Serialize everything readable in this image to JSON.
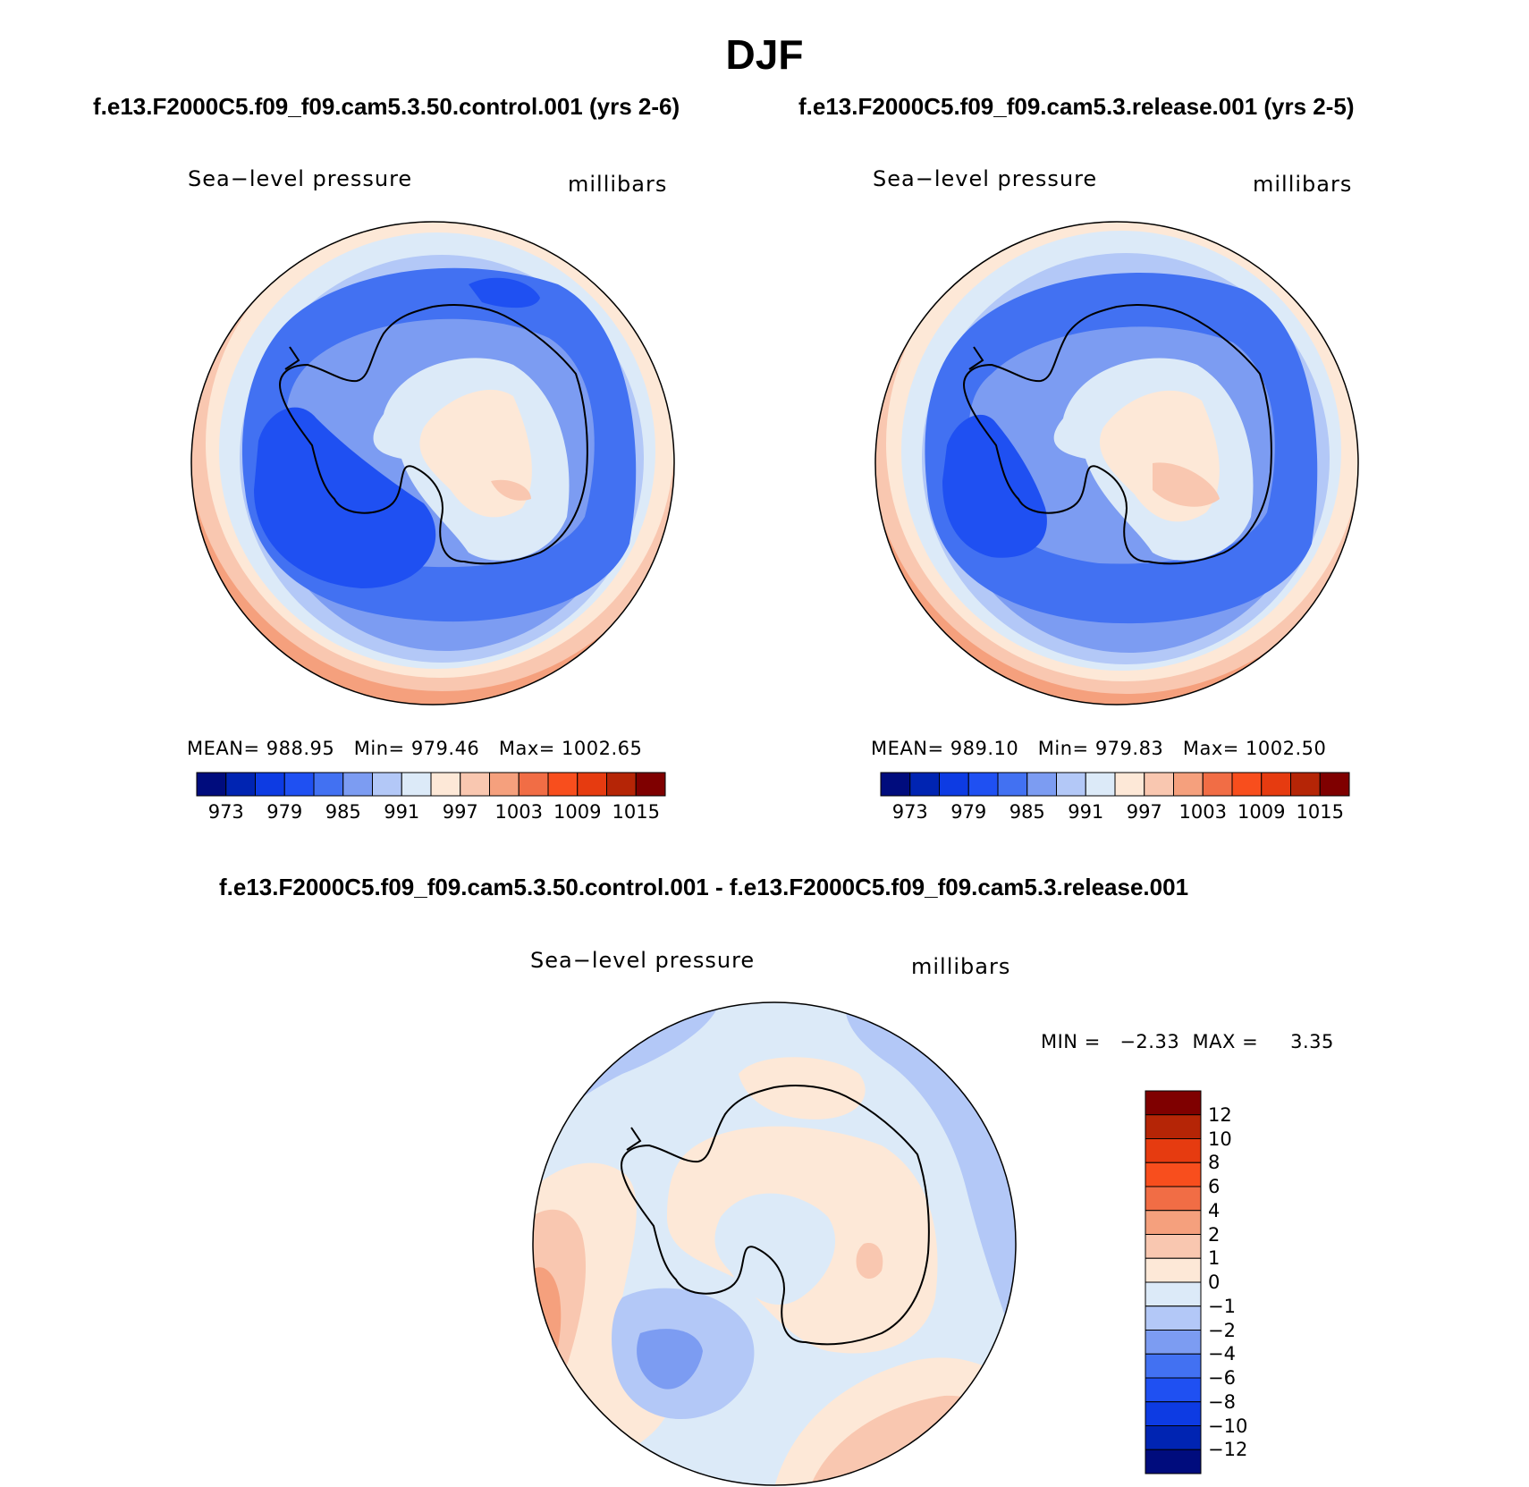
{
  "main_title": "DJF",
  "panels": [
    {
      "run_title": "f.e13.F2000C5.f09_f09.cam5.3.50.control.001 (yrs 2-6)",
      "variable": "Sea−level pressure",
      "units": "millibars",
      "stats": {
        "mean_label": "MEAN=",
        "mean": "988.95",
        "min_label": "Min=",
        "min": "979.46",
        "max_label": "Max=",
        "max": "1002.65"
      }
    },
    {
      "run_title": "f.e13.F2000C5.f09_f09.cam5.3.release.001 (yrs 2-5)",
      "variable": "Sea−level pressure",
      "units": "millibars",
      "stats": {
        "mean_label": "MEAN=",
        "mean": "989.10",
        "min_label": "Min=",
        "min": "979.83",
        "max_label": "Max=",
        "max": "1002.50"
      }
    }
  ],
  "diff_panel": {
    "run_title": "f.e13.F2000C5.f09_f09.cam5.3.50.control.001 - f.e13.F2000C5.f09_f09.cam5.3.release.001",
    "variable": "Sea−level pressure",
    "units": "millibars",
    "stats": {
      "min_label": "MIN =",
      "min": "−2.33",
      "max_label": "MAX =",
      "max": "3.35"
    }
  },
  "colorbar_abs": {
    "colors": [
      "#000c7d",
      "#0024b2",
      "#0d3be3",
      "#1f50f2",
      "#4271f2",
      "#7c9cf2",
      "#b3c8f7",
      "#dceaf8",
      "#fde8d7",
      "#f9c7b0",
      "#f5a07d",
      "#f16d45",
      "#f84e1d",
      "#e63b10",
      "#b52506",
      "#7f0000"
    ],
    "labels": [
      "973",
      "979",
      "985",
      "991",
      "997",
      "1003",
      "1009",
      "1015"
    ]
  },
  "colorbar_diff": {
    "colors": [
      "#7f0000",
      "#b52506",
      "#e63b10",
      "#f84e1d",
      "#f16d45",
      "#f5a07d",
      "#f9c7b0",
      "#fde8d7",
      "#dceaf8",
      "#b3c8f7",
      "#7c9cf2",
      "#4271f2",
      "#1f50f2",
      "#0d3be3",
      "#0024b2",
      "#000c7d"
    ],
    "labels": [
      "12",
      "10",
      "8",
      "6",
      "4",
      "2",
      "1",
      "0",
      "−1",
      "−2",
      "−4",
      "−6",
      "−8",
      "−10",
      "−12"
    ]
  },
  "map_colors": {
    "b_d1": "#1f50f2",
    "b_d2": "#4271f2",
    "b_m": "#7c9cf2",
    "b_l": "#b3c8f7",
    "b_vl": "#dceaf8",
    "o_vl": "#fde8d7",
    "o_l": "#f9c7b0",
    "o_m": "#f5a07d",
    "coast": "#000000"
  }
}
